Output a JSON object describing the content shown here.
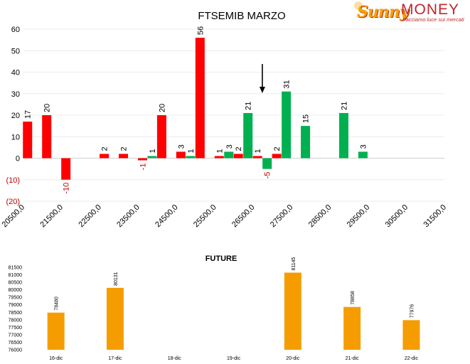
{
  "logo": {
    "brand_left": "Sunny",
    "brand_right": "MONEY",
    "tagline": "Facciamo luce sui mercati"
  },
  "colors": {
    "negative": "#ff0000",
    "positive": "#00b050",
    "future": "#f59d00",
    "axis_negative_label": "#c00000"
  },
  "chart_data": [
    {
      "type": "bar",
      "title": "FTSEMIB MARZO",
      "xlabel": "",
      "ylabel": "",
      "ylim": [
        -20,
        60
      ],
      "y_ticks": [
        "60",
        "50",
        "40",
        "30",
        "20",
        "10",
        "0",
        "(10)",
        "(20)"
      ],
      "y_tick_values": [
        60,
        50,
        40,
        30,
        20,
        10,
        0,
        -10,
        -20
      ],
      "x_ticks": [
        "20500,0",
        "21500,0",
        "22500,0",
        "23500,0",
        "24500,0",
        "25500,0",
        "26500,0",
        "27500,0",
        "28500,0",
        "29500,0",
        "30500,0",
        "31500,0"
      ],
      "x_tick_values": [
        20500,
        21500,
        22500,
        23500,
        24500,
        25500,
        26500,
        27500,
        28500,
        29500,
        30500,
        31500
      ],
      "grid": true,
      "arrow_at_strike": 26750,
      "series": [
        {
          "color": "#ff0000",
          "points": [
            {
              "x": 20625,
              "y": 17,
              "label": "17"
            },
            {
              "x": 21125,
              "y": 20,
              "label": "20"
            },
            {
              "x": 21625,
              "y": -10,
              "label": "-10"
            },
            {
              "x": 22625,
              "y": 2,
              "label": "2"
            },
            {
              "x": 23125,
              "y": 2,
              "label": "2"
            },
            {
              "x": 23625,
              "y": -1,
              "label": "-1"
            },
            {
              "x": 24125,
              "y": 20,
              "label": "20"
            },
            {
              "x": 24625,
              "y": 3,
              "label": "3"
            },
            {
              "x": 25125,
              "y": 56,
              "label": "56"
            },
            {
              "x": 25625,
              "y": 1,
              "label": "1"
            },
            {
              "x": 26125,
              "y": 2,
              "label": "2"
            },
            {
              "x": 26625,
              "y": 1,
              "label": "1"
            },
            {
              "x": 27125,
              "y": 2,
              "label": "2"
            }
          ]
        },
        {
          "color": "#00b050",
          "points": [
            {
              "x": 23875,
              "y": 1,
              "label": "1"
            },
            {
              "x": 24875,
              "y": 1,
              "label": "1"
            },
            {
              "x": 25875,
              "y": 3,
              "label": "3"
            },
            {
              "x": 26375,
              "y": 21,
              "label": "21"
            },
            {
              "x": 26875,
              "y": -5,
              "label": "-5"
            },
            {
              "x": 27375,
              "y": 31,
              "label": "31"
            },
            {
              "x": 27875,
              "y": 15,
              "label": "15"
            },
            {
              "x": 28875,
              "y": 21,
              "label": "21"
            },
            {
              "x": 29375,
              "y": 3,
              "label": "3"
            }
          ]
        }
      ]
    },
    {
      "type": "bar",
      "title": "FUTURE",
      "xlabel": "",
      "ylabel": "",
      "ylim": [
        76000,
        81500
      ],
      "y_ticks": [
        "81500",
        "81000",
        "80500",
        "80000",
        "79500",
        "79000",
        "78500",
        "78000",
        "77500",
        "77000",
        "76500",
        "76000"
      ],
      "categories": [
        "16-dic",
        "17-dic",
        "18-dic",
        "19-dic",
        "20-dic",
        "21-dic",
        "22-dic"
      ],
      "values": [
        78480,
        80131,
        null,
        null,
        81145,
        78858,
        77976
      ],
      "labels": [
        "78480",
        "80131",
        "",
        "",
        "81145",
        "78858",
        "77976"
      ],
      "grid": false
    }
  ]
}
